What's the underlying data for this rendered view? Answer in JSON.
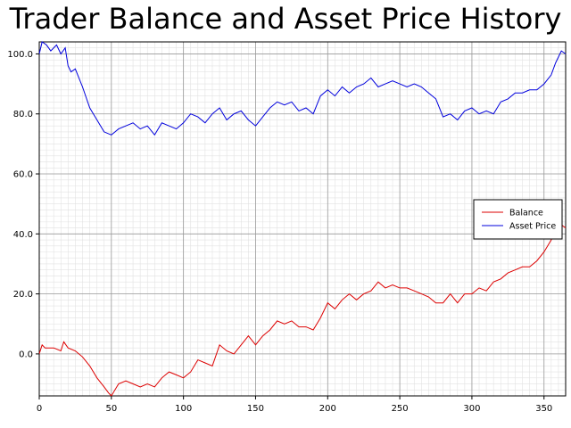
{
  "chart_data": {
    "type": "line",
    "title": "Trader Balance and Asset Price History",
    "xlim": [
      0,
      365
    ],
    "ylim": [
      -14,
      104
    ],
    "x_ticks": [
      0,
      50,
      100,
      150,
      200,
      250,
      300,
      350
    ],
    "y_ticks": [
      0.0,
      20.0,
      40.0,
      60.0,
      80.0,
      100.0
    ],
    "y_tick_labels": [
      "0.0",
      "20.0",
      "40.0",
      "60.0",
      "80.0",
      "100.0"
    ],
    "grid": true,
    "legend_position": "right",
    "series": [
      {
        "name": "Balance",
        "color": "#dd0000",
        "x": [
          0,
          2,
          4,
          10,
          15,
          17,
          20,
          25,
          30,
          35,
          40,
          45,
          48,
          50,
          55,
          60,
          65,
          70,
          75,
          80,
          85,
          90,
          95,
          100,
          105,
          110,
          115,
          120,
          125,
          130,
          135,
          140,
          145,
          150,
          155,
          160,
          165,
          170,
          175,
          180,
          185,
          190,
          195,
          200,
          205,
          210,
          215,
          220,
          225,
          230,
          235,
          240,
          245,
          250,
          255,
          260,
          265,
          270,
          275,
          280,
          285,
          290,
          295,
          300,
          305,
          310,
          315,
          320,
          325,
          330,
          335,
          340,
          345,
          350,
          355,
          358,
          362,
          365
        ],
        "y": [
          0,
          3,
          2,
          2,
          1,
          4,
          2,
          1,
          -1,
          -4,
          -8,
          -11,
          -13,
          -14,
          -10,
          -9,
          -10,
          -11,
          -10,
          -11,
          -8,
          -6,
          -7,
          -8,
          -6,
          -2,
          -3,
          -4,
          3,
          1,
          0,
          3,
          6,
          3,
          6,
          8,
          11,
          10,
          11,
          9,
          9,
          8,
          12,
          17,
          15,
          18,
          20,
          18,
          20,
          21,
          24,
          22,
          23,
          22,
          22,
          21,
          20,
          19,
          17,
          17,
          20,
          17,
          20,
          20,
          22,
          21,
          24,
          25,
          27,
          28,
          29,
          29,
          31,
          34,
          38,
          42,
          43,
          42
        ]
      },
      {
        "name": "Asset Price",
        "color": "#0000dd",
        "x": [
          0,
          2,
          5,
          8,
          12,
          15,
          18,
          20,
          22,
          25,
          30,
          35,
          40,
          45,
          50,
          55,
          60,
          65,
          70,
          75,
          80,
          85,
          90,
          95,
          100,
          105,
          110,
          115,
          120,
          125,
          130,
          135,
          140,
          145,
          150,
          155,
          160,
          165,
          170,
          175,
          180,
          185,
          190,
          195,
          200,
          205,
          210,
          215,
          220,
          225,
          230,
          235,
          240,
          245,
          250,
          255,
          260,
          265,
          270,
          275,
          280,
          285,
          290,
          295,
          300,
          305,
          310,
          315,
          320,
          325,
          330,
          335,
          340,
          345,
          350,
          355,
          358,
          362,
          365
        ],
        "y": [
          100,
          104,
          103,
          101,
          103,
          100,
          102,
          96,
          94,
          95,
          89,
          82,
          78,
          74,
          73,
          75,
          76,
          77,
          75,
          76,
          73,
          77,
          76,
          75,
          77,
          80,
          79,
          77,
          80,
          82,
          78,
          80,
          81,
          78,
          76,
          79,
          82,
          84,
          83,
          84,
          81,
          82,
          80,
          86,
          88,
          86,
          89,
          87,
          89,
          90,
          92,
          89,
          90,
          91,
          90,
          89,
          90,
          89,
          87,
          85,
          79,
          80,
          78,
          81,
          82,
          80,
          81,
          80,
          84,
          85,
          87,
          87,
          88,
          88,
          90,
          93,
          97,
          101,
          100
        ]
      }
    ]
  }
}
